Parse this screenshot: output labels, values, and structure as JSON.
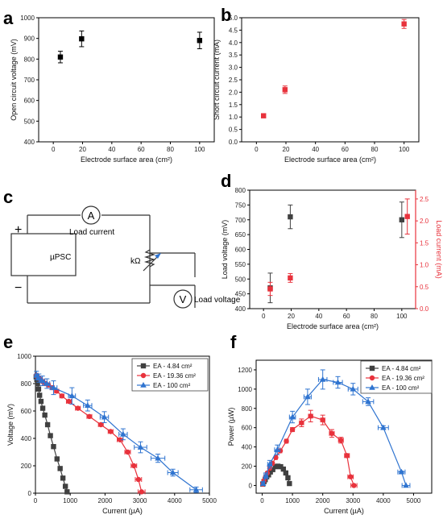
{
  "panels": {
    "a": {
      "letter": "a"
    },
    "b": {
      "letter": "b"
    },
    "c": {
      "letter": "c"
    },
    "d": {
      "letter": "d"
    },
    "e": {
      "letter": "e"
    },
    "f": {
      "letter": "f"
    }
  },
  "circuit": {
    "ammeter_symbol": "A",
    "ammeter_label": "Load current",
    "voltmeter_symbol": "V",
    "voltmeter_label": "Load voltage",
    "resistor_label": "kΩ",
    "source_label": "µPSC",
    "plus": "+",
    "minus": "−"
  },
  "colors": {
    "black_series": "#000000",
    "gray_series": "#404040",
    "red_series": "#e8323c",
    "red_axis": "#e8323c",
    "blue_series": "#2f74d0"
  },
  "chart_data": [
    {
      "panel": "a",
      "type": "scatter",
      "xlabel": "Electrode surface area (cm²)",
      "ylabel": "Open circuit voltage (mV)",
      "xlim": [
        -10,
        110
      ],
      "ylim": [
        400,
        1000
      ],
      "xticks": [
        0,
        20,
        40,
        60,
        80,
        100
      ],
      "yticks": [
        400,
        500,
        600,
        700,
        800,
        900,
        1000
      ],
      "series": [
        {
          "color": "#000000",
          "marker": "square",
          "x": [
            4.84,
            19.36,
            100
          ],
          "y": [
            810,
            898,
            890
          ],
          "yerr": [
            28,
            38,
            40
          ]
        }
      ]
    },
    {
      "panel": "b",
      "type": "scatter",
      "xlabel": "Electrode surface area (cm²)",
      "ylabel": "Short circuit current (mA)",
      "xlim": [
        -10,
        110
      ],
      "ylim": [
        0.0,
        5.0
      ],
      "xticks": [
        0,
        20,
        40,
        60,
        80,
        100
      ],
      "yticks": [
        0.0,
        0.5,
        1.0,
        1.5,
        2.0,
        2.5,
        3.0,
        3.5,
        4.0,
        4.5,
        5.0
      ],
      "ytick_labels": [
        "0.0",
        "0.5",
        "1.0",
        "1.5",
        "2.0",
        "2.5",
        "3.0",
        "3.5",
        "4.0",
        "4.5",
        "5.0"
      ],
      "series": [
        {
          "color": "#e8323c",
          "marker": "square",
          "x": [
            4.84,
            19.36,
            100
          ],
          "y": [
            1.05,
            2.1,
            4.75
          ],
          "yerr": [
            0.08,
            0.15,
            0.18
          ]
        }
      ]
    },
    {
      "panel": "d",
      "type": "scatter",
      "xlabel": "Electrode surface area (cm²)",
      "ylabel": "Load voltage (mV)",
      "y2label": "Load current (mA)",
      "xlim": [
        -10,
        110
      ],
      "ylim": [
        400,
        800
      ],
      "y2lim": [
        0.0,
        2.7
      ],
      "xticks": [
        0,
        20,
        40,
        60,
        80,
        100
      ],
      "yticks": [
        400,
        450,
        500,
        550,
        600,
        650,
        700,
        750,
        800
      ],
      "y2ticks": [
        0.0,
        0.5,
        1.0,
        1.5,
        2.0,
        2.5
      ],
      "y2tick_labels": [
        "0.0",
        "0.5",
        "1.0",
        "1.5",
        "2.0",
        "2.5"
      ],
      "series": [
        {
          "axis": "left",
          "color": "#404040",
          "marker": "square",
          "x": [
            4.84,
            19.36,
            100
          ],
          "y": [
            470,
            710,
            700
          ],
          "yerr": [
            50,
            40,
            60
          ]
        },
        {
          "axis": "right",
          "color": "#e8323c",
          "marker": "square",
          "x": [
            4.84,
            19.36,
            104
          ],
          "y": [
            0.45,
            0.7,
            2.1
          ],
          "yerr": [
            0.15,
            0.1,
            0.4
          ]
        }
      ]
    },
    {
      "panel": "e",
      "type": "line",
      "xlabel": "Current (µA)",
      "ylabel": "Voltage (mV)",
      "xlim": [
        0,
        5000
      ],
      "ylim": [
        0,
        1000
      ],
      "xticks": [
        0,
        1000,
        2000,
        3000,
        4000,
        5000
      ],
      "yticks": [
        0,
        200,
        400,
        600,
        800,
        1000
      ],
      "legend_position": "top-right",
      "series": [
        {
          "name": "EA - 4.84 cm²",
          "color": "#404040",
          "marker": "square",
          "x": [
            20,
            40,
            60,
            90,
            120,
            160,
            210,
            270,
            350,
            430,
            520,
            620,
            710,
            790,
            860,
            910
          ],
          "y": [
            850,
            830,
            800,
            760,
            715,
            670,
            620,
            570,
            500,
            420,
            340,
            250,
            180,
            110,
            50,
            10
          ]
        },
        {
          "name": "EA - 19.36 cm²",
          "color": "#e8323c",
          "marker": "circle",
          "x": [
            30,
            60,
            100,
            150,
            210,
            280,
            370,
            480,
            610,
            760,
            960,
            1220,
            1550,
            1880,
            2160,
            2430,
            2650,
            2830,
            2960,
            3050
          ],
          "y": [
            860,
            850,
            840,
            830,
            815,
            800,
            790,
            770,
            745,
            710,
            670,
            620,
            560,
            500,
            450,
            390,
            300,
            200,
            100,
            10
          ],
          "xerr": [
            40,
            40,
            40,
            40,
            40,
            40,
            50,
            60,
            60,
            60,
            70,
            70,
            70,
            70,
            70,
            80,
            80,
            80,
            90,
            100
          ]
        },
        {
          "name": "EA - 100 cm²",
          "color": "#2f74d0",
          "marker": "triangle",
          "x": [
            30,
            100,
            200,
            330,
            520,
            1050,
            1500,
            1980,
            2520,
            3020,
            3520,
            3950,
            4620
          ],
          "y": [
            860,
            840,
            820,
            800,
            770,
            710,
            640,
            555,
            430,
            335,
            255,
            150,
            25
          ],
          "xerr": [
            50,
            60,
            70,
            80,
            100,
            100,
            120,
            120,
            120,
            180,
            200,
            150,
            180
          ],
          "yerr": [
            30,
            30,
            35,
            35,
            50,
            60,
            40,
            40,
            40,
            40,
            30,
            25,
            20
          ]
        }
      ]
    },
    {
      "panel": "f",
      "type": "line",
      "xlabel": "Current (µA)",
      "ylabel": "Power (µW)",
      "xlim": [
        -200,
        5600
      ],
      "ylim": [
        -80,
        1300
      ],
      "xticks": [
        0,
        1000,
        2000,
        3000,
        4000,
        5000
      ],
      "yticks": [
        0,
        200,
        400,
        600,
        800,
        1000,
        1200
      ],
      "legend_position": "top-right",
      "series": [
        {
          "name": "EA - 4.84 cm²",
          "color": "#404040",
          "marker": "square",
          "x": [
            20,
            60,
            100,
            150,
            210,
            270,
            350,
            440,
            520,
            610,
            700,
            780,
            850,
            900
          ],
          "y": [
            15,
            40,
            60,
            90,
            110,
            140,
            165,
            195,
            200,
            195,
            170,
            130,
            80,
            20
          ]
        },
        {
          "name": "EA - 19.36 cm²",
          "color": "#e8323c",
          "marker": "circle",
          "x": [
            20,
            60,
            110,
            170,
            250,
            340,
            450,
            600,
            800,
            1000,
            1300,
            1600,
            2000,
            2300,
            2600,
            2800,
            2920,
            3030
          ],
          "y": [
            15,
            50,
            90,
            130,
            180,
            230,
            290,
            360,
            460,
            580,
            650,
            720,
            680,
            540,
            470,
            310,
            90,
            0
          ],
          "xerr": [
            30,
            30,
            30,
            30,
            40,
            40,
            50,
            50,
            60,
            60,
            70,
            70,
            70,
            80,
            80,
            80,
            90,
            100
          ],
          "yerr": [
            0,
            0,
            0,
            0,
            0,
            0,
            0,
            0,
            0,
            20,
            40,
            60,
            50,
            40,
            30,
            20,
            10,
            0
          ]
        },
        {
          "name": "EA - 100 cm²",
          "color": "#2f74d0",
          "marker": "triangle",
          "x": [
            30,
            120,
            250,
            500,
            1000,
            1500,
            2000,
            2500,
            3000,
            3500,
            4000,
            4600,
            4750
          ],
          "y": [
            20,
            100,
            220,
            370,
            710,
            920,
            1100,
            1070,
            1000,
            870,
            600,
            140,
            0
          ],
          "xerr": [
            50,
            60,
            70,
            90,
            100,
            120,
            140,
            150,
            160,
            180,
            170,
            120,
            130
          ],
          "yerr": [
            20,
            30,
            40,
            50,
            60,
            80,
            100,
            60,
            60,
            40,
            20,
            10,
            0
          ]
        }
      ]
    }
  ]
}
